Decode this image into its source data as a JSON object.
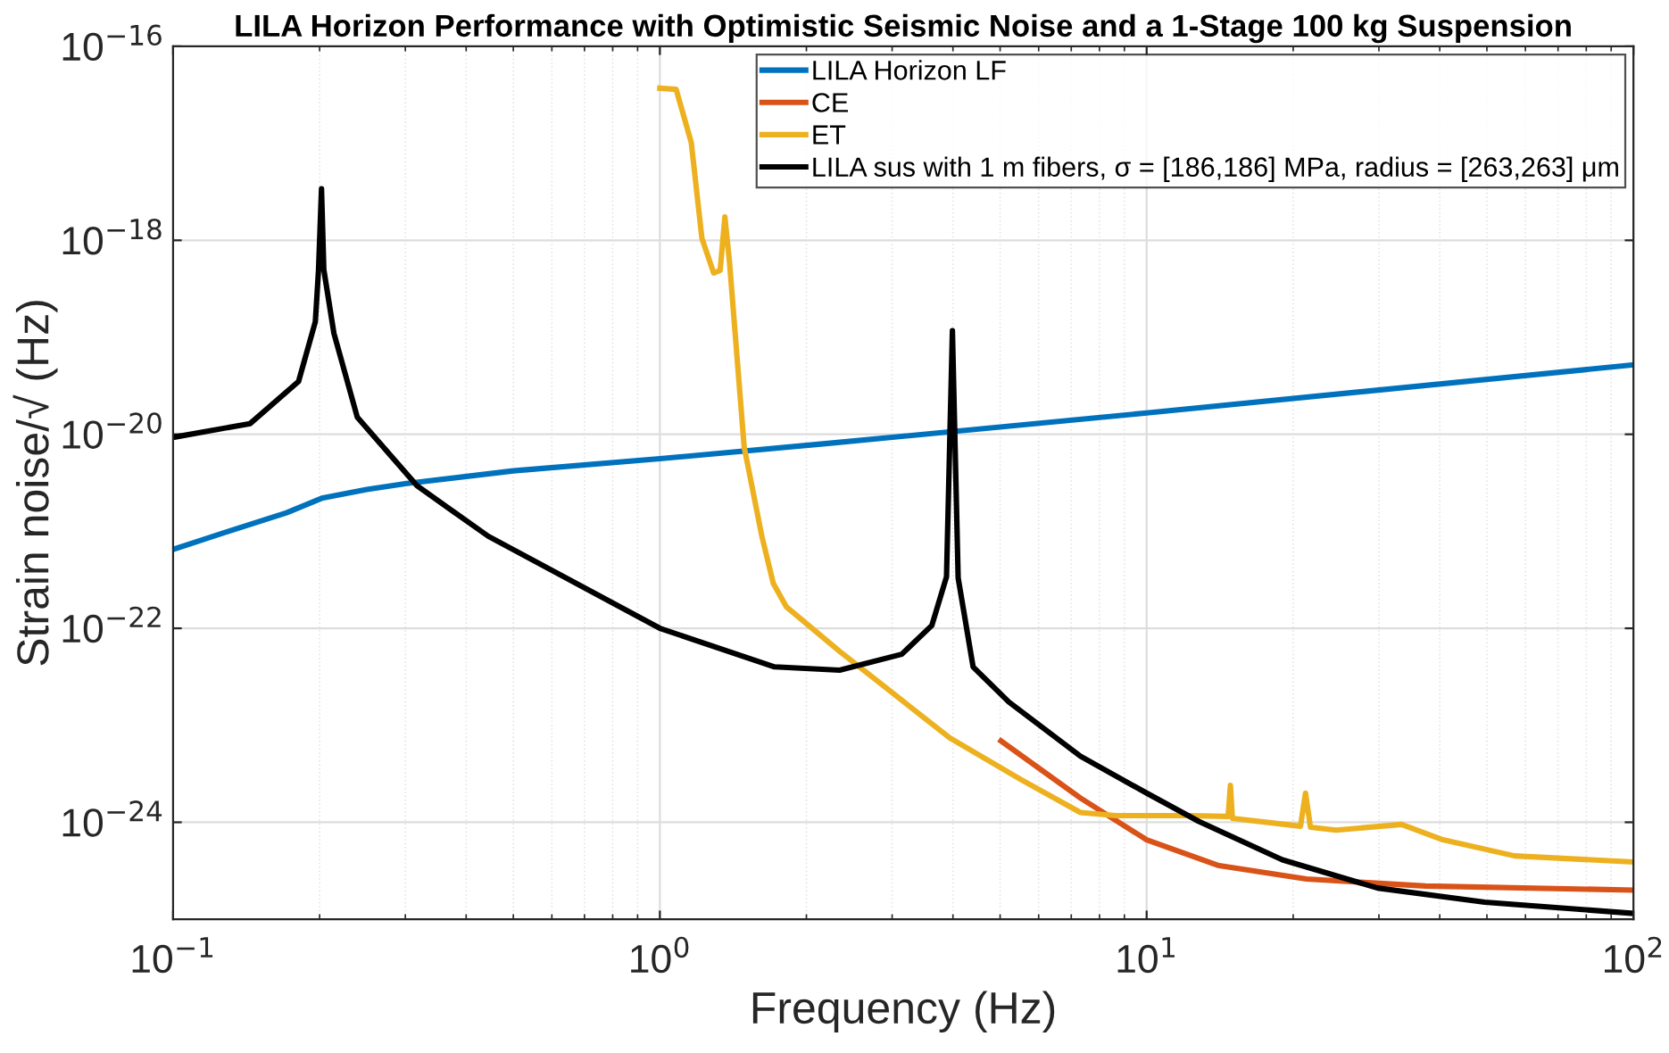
{
  "chart_data": {
    "type": "line",
    "title": "LILA Horizon Performance with Optimistic Seismic Noise and a 1-Stage 100 kg Suspension",
    "xlabel": "Frequency (Hz)",
    "ylabel": "Strain noise/√ (Hz)",
    "log": "xy",
    "grid": true,
    "legend": "top right",
    "line_style": "solid",
    "marker": "none",
    "xlim": [
      0.1,
      100
    ],
    "ylim": [
      1e-25,
      1e-16
    ],
    "xticks": [
      {
        "value": 0.1,
        "label": "10$^{−1}$"
      },
      {
        "value": 1,
        "label": "10$^{0}$"
      },
      {
        "value": 10,
        "label": "10$^{1}$"
      },
      {
        "value": 100,
        "label": "10$^{2}$"
      }
    ],
    "yticks": [
      {
        "value": 1e-24,
        "label": "10$^{−24}$"
      },
      {
        "value": 1e-22,
        "label": "10$^{−22}$"
      },
      {
        "value": 1e-20,
        "label": "10$^{−20}$"
      },
      {
        "value": 1e-18,
        "label": "10$^{−18}$"
      },
      {
        "value": 1e-16,
        "label": "10$^{−16}$"
      }
    ],
    "series": [
      {
        "name": "LILA Horizon LF",
        "color": "#0072bd",
        "x": [
          0.1,
          0.13,
          0.171,
          0.202,
          0.25,
          0.3,
          0.5,
          1,
          2.24,
          10,
          100
        ],
        "values": [
          6.5e-22,
          1e-21,
          1.55e-21,
          2.19e-21,
          2.7e-21,
          3.1e-21,
          4.2e-21,
          5.6e-21,
          8.1e-21,
          1.66e-20,
          5.2e-20
        ]
      },
      {
        "name": "CE",
        "color": "#d95319",
        "x": [
          5.02,
          7.31,
          10,
          14.0,
          21.3,
          37.4,
          100
        ],
        "values": [
          6.9e-24,
          1.78e-24,
          6.6e-25,
          3.6e-25,
          2.6e-25,
          2.2e-25,
          2e-25
        ]
      },
      {
        "name": "ET",
        "color": "#edb120",
        "x": [
          1.0,
          1.08,
          1.16,
          1.22,
          1.29,
          1.33,
          1.36,
          1.39,
          1.49,
          1.62,
          1.71,
          1.82,
          2.34,
          3.94,
          5.52,
          7.31,
          8.65,
          12.1,
          14.7,
          14.86,
          15.0,
          20.7,
          21.2,
          21.7,
          24.5,
          33.4,
          40.6,
          57.0,
          100
        ],
        "values": [
          3.7e-17,
          3.6e-17,
          1.02e-17,
          1.05e-18,
          4.6e-19,
          4.9e-19,
          1.74e-18,
          6e-19,
          7.4e-21,
          8.9e-22,
          2.9e-22,
          1.66e-22,
          5.8e-23,
          7.4e-24,
          2.75e-24,
          1.26e-24,
          1.17e-24,
          1.17e-24,
          1.15e-24,
          2.4e-24,
          1.1e-24,
          9.1e-25,
          2e-24,
          8.9e-25,
          8.3e-25,
          9.5e-25,
          6.6e-25,
          4.5e-25,
          3.9e-25
        ]
      },
      {
        "name": "LILA sus with 1 m fibers, σ = [186,186] MPa, radius = [263,263] μm",
        "color": "#000000",
        "x": [
          0.1,
          0.144,
          0.181,
          0.196,
          0.199,
          0.2018,
          0.204,
          0.214,
          0.239,
          0.317,
          0.444,
          1,
          1.72,
          2.34,
          3.14,
          3.62,
          3.88,
          3.99,
          4.1,
          4.4,
          5.21,
          7.31,
          10,
          12.8,
          19.0,
          29.8,
          49.5,
          100
        ],
        "values": [
          9.3e-21,
          1.29e-20,
          3.5e-20,
          1.45e-19,
          5e-19,
          3.4e-18,
          5e-19,
          1.1e-19,
          1.5e-20,
          2.95e-21,
          8.9e-22,
          1e-22,
          4e-23,
          3.7e-23,
          5.4e-23,
          1.07e-22,
          3.4e-22,
          1.17e-19,
          3.3e-22,
          4e-23,
          1.74e-23,
          4.8e-24,
          2e-24,
          1.02e-24,
          4.1e-25,
          2.1e-25,
          1.5e-25,
          1.15e-25
        ]
      }
    ]
  }
}
